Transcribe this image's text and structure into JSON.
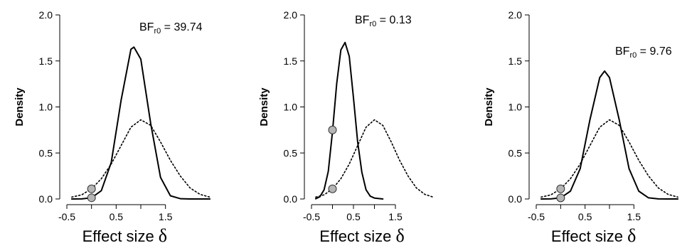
{
  "chart_data": [
    {
      "type": "line",
      "x_ticks": [
        "-0.5",
        "0.5",
        "1.5"
      ],
      "y_ticks": [
        "0.0",
        "0.5",
        "1.0",
        "1.5",
        "2.0"
      ],
      "xlabel": "Effect size",
      "xlabel_symbol": "δ",
      "ylabel": "Density",
      "xlim": [
        -0.5,
        2.5
      ],
      "ylim": [
        0,
        2.0
      ],
      "annotation": {
        "prefix": "BF",
        "subscript": "r0",
        "text": " = 39.74"
      },
      "series": [
        {
          "style": "solid",
          "x": [
            -0.4,
            -0.2,
            0.0,
            0.2,
            0.4,
            0.6,
            0.8,
            0.86,
            1.0,
            1.2,
            1.4,
            1.6,
            1.8,
            2.0,
            2.2,
            2.4
          ],
          "y": [
            0.0,
            0.001,
            0.013,
            0.09,
            0.396,
            1.073,
            1.627,
            1.65,
            1.52,
            0.82,
            0.235,
            0.035,
            0.003,
            0.0,
            0.0,
            0.0
          ]
        },
        {
          "style": "dotted",
          "x": [
            -0.4,
            -0.2,
            0.0,
            0.2,
            0.4,
            0.6,
            0.8,
            1.0,
            1.2,
            1.4,
            1.6,
            1.8,
            2.0,
            2.2,
            2.4
          ],
          "y": [
            0.02,
            0.045,
            0.11,
            0.22,
            0.38,
            0.58,
            0.78,
            0.86,
            0.8,
            0.62,
            0.42,
            0.25,
            0.12,
            0.05,
            0.02
          ]
        }
      ],
      "points": [
        {
          "x": 0,
          "y": 0.11
        },
        {
          "x": 0,
          "y": 0.013
        }
      ]
    },
    {
      "type": "line",
      "x_ticks": [
        "-0.5",
        "0.5",
        "1.5"
      ],
      "y_ticks": [
        "0.0",
        "0.5",
        "1.0",
        "1.5",
        "2.0"
      ],
      "xlabel": "Effect size",
      "xlabel_symbol": "δ",
      "ylabel": "Density",
      "xlim": [
        -0.5,
        2.5
      ],
      "ylim": [
        0,
        2.0
      ],
      "annotation": {
        "prefix": "BF",
        "subscript": "r0",
        "text": " = 0.13"
      },
      "series": [
        {
          "style": "solid",
          "x": [
            -0.4,
            -0.3,
            -0.2,
            -0.1,
            0.0,
            0.1,
            0.2,
            0.3,
            0.4,
            0.5,
            0.6,
            0.7,
            0.8,
            0.9,
            1.0,
            1.2
          ],
          "y": [
            0.002,
            0.025,
            0.1,
            0.3,
            0.73,
            1.25,
            1.62,
            1.7,
            1.55,
            1.1,
            0.62,
            0.29,
            0.1,
            0.03,
            0.01,
            0.0
          ]
        },
        {
          "style": "dotted",
          "x": [
            -0.4,
            -0.2,
            0.0,
            0.2,
            0.4,
            0.6,
            0.8,
            1.0,
            1.2,
            1.4,
            1.6,
            1.8,
            2.0,
            2.2,
            2.4
          ],
          "y": [
            0.02,
            0.045,
            0.11,
            0.22,
            0.38,
            0.58,
            0.78,
            0.86,
            0.8,
            0.62,
            0.42,
            0.25,
            0.12,
            0.05,
            0.02
          ]
        }
      ],
      "points": [
        {
          "x": 0,
          "y": 0.75
        },
        {
          "x": 0,
          "y": 0.11
        }
      ]
    },
    {
      "type": "line",
      "x_ticks": [
        "-0.5",
        "0.5",
        "1.5"
      ],
      "y_ticks": [
        "0.0",
        "0.5",
        "1.0",
        "1.5",
        "2.0"
      ],
      "xlabel": "Effect size",
      "xlabel_symbol": "δ",
      "ylabel": "Density",
      "xlim": [
        -0.5,
        2.5
      ],
      "ylim": [
        0,
        2.0
      ],
      "annotation": {
        "prefix": "BF",
        "subscript": "r0",
        "text": " = 9.76"
      },
      "series": [
        {
          "style": "solid",
          "x": [
            -0.4,
            -0.2,
            0.0,
            0.2,
            0.4,
            0.6,
            0.8,
            0.9,
            1.0,
            1.2,
            1.4,
            1.6,
            1.8,
            2.0,
            2.2,
            2.4
          ],
          "y": [
            0.0,
            0.001,
            0.012,
            0.085,
            0.33,
            0.86,
            1.32,
            1.39,
            1.32,
            0.86,
            0.33,
            0.085,
            0.012,
            0.001,
            0.0,
            0.0
          ]
        },
        {
          "style": "dotted",
          "x": [
            -0.4,
            -0.2,
            0.0,
            0.2,
            0.4,
            0.6,
            0.8,
            1.0,
            1.2,
            1.4,
            1.6,
            1.8,
            2.0,
            2.2,
            2.4
          ],
          "y": [
            0.02,
            0.045,
            0.11,
            0.22,
            0.38,
            0.58,
            0.78,
            0.86,
            0.8,
            0.62,
            0.42,
            0.25,
            0.12,
            0.05,
            0.02
          ]
        }
      ],
      "points": [
        {
          "x": 0,
          "y": 0.11
        },
        {
          "x": 0,
          "y": 0.012
        }
      ]
    }
  ]
}
